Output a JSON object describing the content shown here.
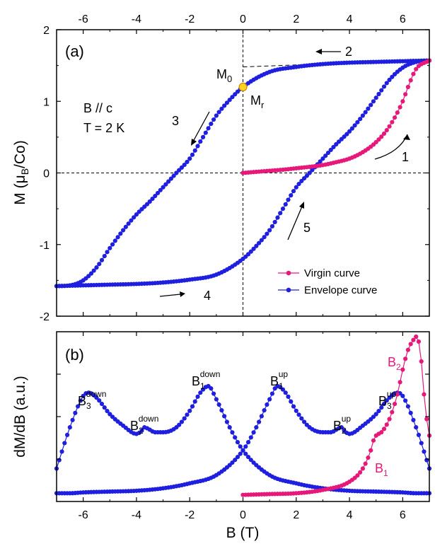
{
  "chart_data": [
    {
      "panel": "(a)",
      "type": "line",
      "xlabel": "B (T)",
      "ylabel_parts": [
        "M (",
        "μ",
        "B",
        "/Co)"
      ],
      "xlim": [
        -7,
        7
      ],
      "ylim": [
        -2,
        2
      ],
      "x_ticks": [
        -6,
        -4,
        -2,
        0,
        2,
        4,
        6
      ],
      "x_tick_labels": [
        "-6",
        "-4",
        "-2",
        "0",
        "2",
        "4",
        "6"
      ],
      "y_ticks": [
        -2,
        -1,
        0,
        1,
        2
      ],
      "y_tick_labels": [
        "-2",
        "-1",
        "0",
        "1",
        "2"
      ],
      "top_tick_labels": [
        "-6",
        "-4",
        "-2",
        "0",
        "2",
        "4",
        "6"
      ],
      "legend": {
        "position": "bottom-right",
        "entries": [
          "Virgin curve",
          "Envelope curve"
        ]
      },
      "condition_lines": [
        "B // c",
        "T = 2 K"
      ],
      "annotations": {
        "M0": {
          "main": "M",
          "sub": "0"
        },
        "Mr": {
          "main": "M",
          "sub": "r"
        },
        "arrow_labels": [
          "1",
          "2",
          "3",
          "4",
          "5"
        ]
      },
      "remanence_point": {
        "x": 0,
        "y": 1.2
      },
      "saturation_extrapolation": {
        "x": [
          0,
          7
        ],
        "y": [
          1.48,
          1.58
        ]
      },
      "series": [
        {
          "name": "Virgin curve",
          "color": "#e6197a",
          "x": [
            0.0,
            0.5,
            1.0,
            1.5,
            2.0,
            2.5,
            3.0,
            3.5,
            4.0,
            4.5,
            5.0,
            5.5,
            6.0,
            6.2,
            6.5,
            7.0
          ],
          "y": [
            0.0,
            0.015,
            0.03,
            0.045,
            0.065,
            0.085,
            0.11,
            0.15,
            0.2,
            0.29,
            0.43,
            0.65,
            1.0,
            1.2,
            1.45,
            1.57
          ]
        },
        {
          "name": "Envelope curve",
          "color": "#1f1fe0",
          "branch_descending": {
            "x": [
              7.0,
              6.0,
              5.0,
              4.0,
              3.0,
              2.0,
              1.0,
              0.0,
              -0.5,
              -1.0,
              -1.5,
              -2.0,
              -2.5,
              -3.0,
              -3.5,
              -4.0,
              -4.5,
              -5.0,
              -5.5,
              -6.0,
              -6.5,
              -7.0
            ],
            "y": [
              1.57,
              1.56,
              1.55,
              1.54,
              1.52,
              1.48,
              1.41,
              1.2,
              1.02,
              0.8,
              0.5,
              0.2,
              0.0,
              -0.2,
              -0.4,
              -0.58,
              -0.8,
              -1.05,
              -1.32,
              -1.5,
              -1.57,
              -1.58
            ]
          },
          "branch_ascending": {
            "x": [
              -7.0,
              -6.0,
              -5.0,
              -4.0,
              -3.0,
              -2.0,
              -1.0,
              0.0,
              0.5,
              1.0,
              1.5,
              2.0,
              2.5,
              3.0,
              3.5,
              4.0,
              4.5,
              5.0,
              5.5,
              6.0,
              6.5,
              7.0
            ],
            "y": [
              -1.58,
              -1.57,
              -1.56,
              -1.55,
              -1.53,
              -1.49,
              -1.42,
              -1.2,
              -1.02,
              -0.8,
              -0.5,
              -0.2,
              0.0,
              0.2,
              0.4,
              0.58,
              0.8,
              1.05,
              1.3,
              1.47,
              1.55,
              1.57
            ]
          }
        }
      ]
    },
    {
      "panel": "(b)",
      "type": "line",
      "xlabel": "B (T)",
      "ylabel": "dM/dB (a.u.)",
      "xlim": [
        -7,
        7
      ],
      "ylim": [
        0,
        1.03
      ],
      "x_ticks": [
        -6,
        -4,
        -2,
        0,
        2,
        4,
        6
      ],
      "x_tick_labels": [
        "-6",
        "-4",
        "-2",
        "0",
        "2",
        "4",
        "6"
      ],
      "y_tick_labels_shown": false,
      "peak_labels": [
        {
          "main": "B",
          "sub": "3",
          "sup": "down"
        },
        {
          "main": "B",
          "sub": "2",
          "sup": "down"
        },
        {
          "main": "B",
          "sub": "1",
          "sup": "down"
        },
        {
          "main": "B",
          "sub": "1",
          "sup": "up"
        },
        {
          "main": "B",
          "sub": "2",
          "sup": "up"
        },
        {
          "main": "B",
          "sub": "3",
          "sup": "up"
        },
        {
          "main": "B",
          "sub": "2",
          "sup": ""
        },
        {
          "main": "B",
          "sub": "1",
          "sup": ""
        }
      ],
      "series": [
        {
          "name": "Envelope curve (descending branch derivative)",
          "color": "#1f1fe0",
          "x": [
            7.0,
            6.5,
            6.0,
            5.0,
            4.0,
            3.0,
            2.0,
            1.0,
            0.0,
            -0.5,
            -1.0,
            -1.3,
            -1.6,
            -2.0,
            -2.5,
            -3.0,
            -3.3,
            -3.55,
            -3.7,
            -3.8,
            -4.0,
            -4.5,
            -5.0,
            -5.5,
            -5.8,
            -6.0,
            -6.5,
            -7.0
          ],
          "y": [
            0.05,
            0.05,
            0.055,
            0.06,
            0.065,
            0.08,
            0.11,
            0.16,
            0.31,
            0.45,
            0.62,
            0.7,
            0.66,
            0.55,
            0.45,
            0.42,
            0.42,
            0.44,
            0.45,
            0.43,
            0.41,
            0.46,
            0.53,
            0.63,
            0.66,
            0.64,
            0.45,
            0.2
          ]
        },
        {
          "name": "Envelope curve (ascending branch derivative)",
          "color": "#1f1fe0",
          "x": [
            -7.0,
            -6.5,
            -6.0,
            -5.0,
            -4.0,
            -3.0,
            -2.0,
            -1.0,
            0.0,
            0.5,
            1.0,
            1.3,
            1.6,
            2.0,
            2.5,
            3.0,
            3.3,
            3.55,
            3.7,
            3.8,
            4.0,
            4.5,
            5.0,
            5.5,
            5.8,
            6.0,
            6.5,
            7.0
          ],
          "y": [
            0.05,
            0.05,
            0.055,
            0.06,
            0.065,
            0.08,
            0.11,
            0.16,
            0.31,
            0.45,
            0.62,
            0.7,
            0.66,
            0.55,
            0.45,
            0.42,
            0.42,
            0.44,
            0.45,
            0.43,
            0.41,
            0.46,
            0.53,
            0.63,
            0.66,
            0.64,
            0.45,
            0.2
          ]
        },
        {
          "name": "Virgin curve (derivative)",
          "color": "#e6197a",
          "x": [
            0.0,
            1.0,
            2.0,
            3.0,
            4.0,
            4.5,
            4.8,
            4.9,
            5.0,
            5.2,
            5.5,
            5.8,
            6.0,
            6.2,
            6.4,
            6.5,
            6.6,
            6.7,
            6.8,
            6.9,
            7.0
          ],
          "y": [
            0.04,
            0.045,
            0.05,
            0.07,
            0.12,
            0.2,
            0.31,
            0.37,
            0.4,
            0.42,
            0.5,
            0.65,
            0.8,
            0.92,
            0.98,
            1.0,
            0.97,
            0.85,
            0.65,
            0.5,
            0.4
          ]
        }
      ]
    }
  ]
}
